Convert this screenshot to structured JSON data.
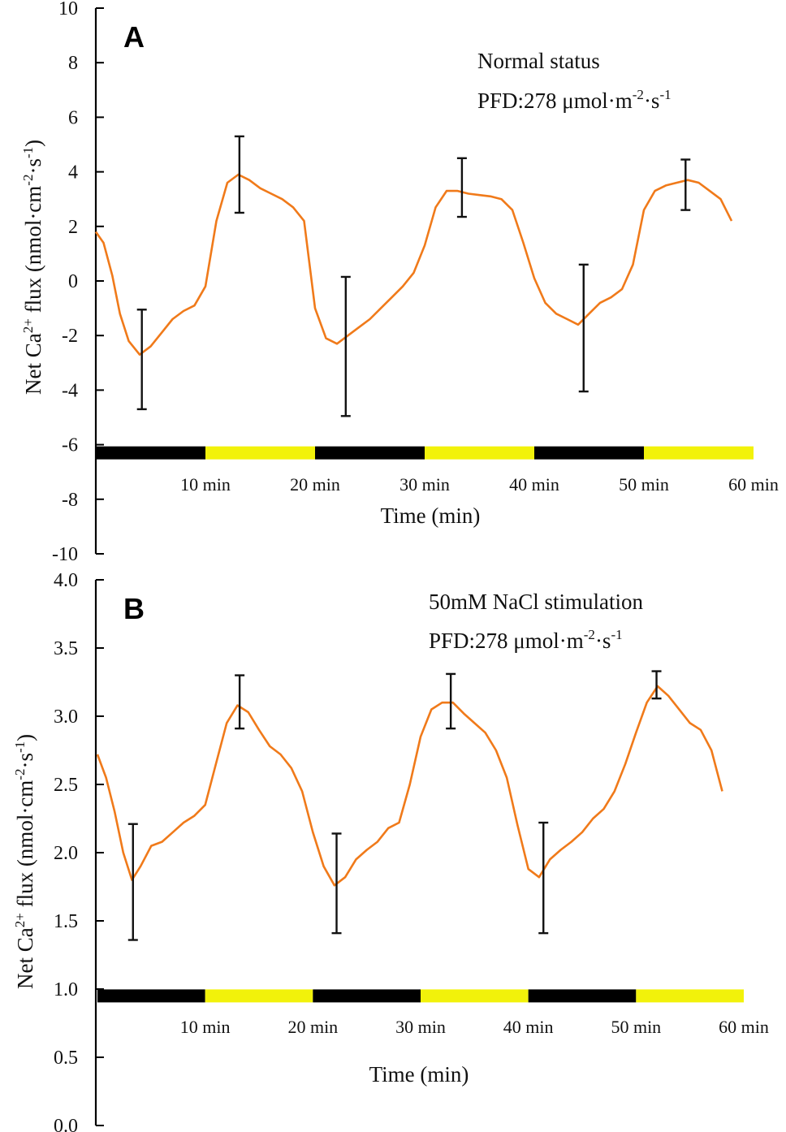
{
  "chart_data": [
    {
      "panel": "A",
      "type": "line",
      "ylabel": "Net Ca2+ flux (nmol·cm-2·s-1)",
      "ylabel_parts": {
        "pre": "Net Ca",
        "sup1": "2+",
        "mid": " flux (nmol·cm",
        "sup2": "-2",
        "mid2": "·s",
        "sup3": "-1",
        "post": ")"
      },
      "ylim": [
        -10,
        10
      ],
      "yticks": [
        "10",
        "8",
        "6",
        "4",
        "2",
        "0",
        "-2",
        "-4",
        "-6",
        "-8",
        "-10"
      ],
      "xlabel": "Time (min)",
      "xlim": [
        0,
        60
      ],
      "x_tick_labels": [
        "10 min",
        "20 min",
        "30 min",
        "40 min",
        "50 min",
        "60 min"
      ],
      "annotation_line1": "Normal status",
      "annotation_pfd": {
        "pre": "PFD:278 μmol·m",
        "sup1": "-2",
        "mid": "·s",
        "sup2": "-1"
      },
      "light_bar": {
        "y": -6.3,
        "segments": [
          {
            "from": 0,
            "to": 10,
            "state": "dark",
            "color": "#000000"
          },
          {
            "from": 10,
            "to": 20,
            "state": "light",
            "color": "#f2f20a"
          },
          {
            "from": 20,
            "to": 30,
            "state": "dark",
            "color": "#000000"
          },
          {
            "from": 30,
            "to": 40,
            "state": "light",
            "color": "#f2f20a"
          },
          {
            "from": 40,
            "to": 50,
            "state": "dark",
            "color": "#000000"
          },
          {
            "from": 50,
            "to": 60,
            "state": "light",
            "color": "#f2f20a"
          }
        ]
      },
      "series": [
        {
          "name": "Net Ca2+ flux",
          "color": "#f07a1a",
          "x": [
            0,
            0.7,
            1.5,
            2.2,
            3,
            4,
            5,
            6,
            7,
            8,
            9,
            10,
            11,
            12,
            13,
            14,
            15,
            16,
            17,
            18,
            19,
            20,
            21,
            22,
            23,
            24,
            25,
            26,
            27,
            28,
            29,
            30,
            31,
            32,
            33,
            34,
            35,
            36,
            37,
            38,
            39,
            40,
            41,
            42,
            43,
            44,
            45,
            46,
            47,
            48,
            49,
            50,
            51,
            52,
            53,
            54,
            55,
            56,
            57,
            58
          ],
          "y": [
            1.8,
            1.4,
            0.2,
            -1.2,
            -2.2,
            -2.7,
            -2.4,
            -1.9,
            -1.4,
            -1.1,
            -0.9,
            -0.2,
            2.2,
            3.6,
            3.9,
            3.7,
            3.4,
            3.2,
            3.0,
            2.7,
            2.2,
            -1.0,
            -2.1,
            -2.3,
            -2.0,
            -1.7,
            -1.4,
            -1.0,
            -0.6,
            -0.2,
            0.3,
            1.3,
            2.7,
            3.3,
            3.3,
            3.2,
            3.15,
            3.1,
            3.0,
            2.6,
            1.4,
            0.1,
            -0.8,
            -1.2,
            -1.4,
            -1.6,
            -1.2,
            -0.8,
            -0.6,
            -0.3,
            0.6,
            2.6,
            3.3,
            3.5,
            3.6,
            3.7,
            3.6,
            3.3,
            3.0,
            2.2
          ]
        }
      ],
      "error_bars": [
        {
          "x": 4.2,
          "center": -2.8,
          "low": -4.7,
          "high": -1.05
        },
        {
          "x": 13.1,
          "center": 3.9,
          "low": 2.5,
          "high": 5.3
        },
        {
          "x": 22.8,
          "center": -2.4,
          "low": -4.95,
          "high": 0.15
        },
        {
          "x": 33.4,
          "center": 3.4,
          "low": 2.35,
          "high": 4.5
        },
        {
          "x": 44.5,
          "center": -1.7,
          "low": -4.05,
          "high": 0.6
        },
        {
          "x": 53.8,
          "center": 3.5,
          "low": 2.6,
          "high": 4.45
        }
      ]
    },
    {
      "panel": "B",
      "type": "line",
      "ylabel": "Net Ca2+ flux (nmol·cm-2·s-1)",
      "ylabel_parts": {
        "pre": "Net Ca",
        "sup1": "2+",
        "mid": " flux (nmol·cm",
        "sup2": "-2",
        "mid2": "·s",
        "sup3": "-1",
        "post": ")"
      },
      "ylim": [
        0.0,
        4.0
      ],
      "yticks": [
        "4.0",
        "3.5",
        "3.0",
        "2.5",
        "2.0",
        "1.5",
        "1.0",
        "0.5",
        "0.0"
      ],
      "xlabel": "Time (min)",
      "xlim": [
        0,
        60
      ],
      "x_tick_labels": [
        "10 min",
        "20 min",
        "30 min",
        "40 min",
        "50 min",
        "60 min"
      ],
      "annotation_line1": "50mM NaCl stimulation",
      "annotation_pfd": {
        "pre": "PFD:278 μmol·m",
        "sup1": "-2",
        "mid": "·s",
        "sup2": "-1"
      },
      "light_bar": {
        "y": 0.95,
        "segments": [
          {
            "from": 0,
            "to": 10,
            "state": "dark",
            "color": "#000000"
          },
          {
            "from": 10,
            "to": 20,
            "state": "light",
            "color": "#f2f20a"
          },
          {
            "from": 20,
            "to": 30,
            "state": "dark",
            "color": "#000000"
          },
          {
            "from": 30,
            "to": 40,
            "state": "light",
            "color": "#f2f20a"
          },
          {
            "from": 40,
            "to": 50,
            "state": "dark",
            "color": "#000000"
          },
          {
            "from": 50,
            "to": 60,
            "state": "light",
            "color": "#f2f20a"
          }
        ]
      },
      "series": [
        {
          "name": "Net Ca2+ flux",
          "color": "#f07a1a",
          "x": [
            0,
            0.8,
            1.6,
            2.4,
            3.2,
            4,
            5,
            6,
            7,
            8,
            9,
            10,
            11,
            12,
            13,
            14,
            15,
            16,
            17,
            18,
            19,
            20,
            21,
            22,
            23,
            24,
            25,
            26,
            27,
            28,
            29,
            30,
            31,
            32,
            33,
            34,
            35,
            36,
            37,
            38,
            39,
            40,
            41,
            42,
            43,
            44,
            45,
            46,
            47,
            48,
            49,
            50,
            51,
            52,
            53,
            54,
            55,
            56,
            57,
            58
          ],
          "y": [
            2.72,
            2.55,
            2.3,
            2.0,
            1.8,
            1.9,
            2.05,
            2.08,
            2.15,
            2.22,
            2.27,
            2.35,
            2.65,
            2.95,
            3.08,
            3.03,
            2.9,
            2.78,
            2.72,
            2.62,
            2.45,
            2.15,
            1.9,
            1.76,
            1.82,
            1.95,
            2.02,
            2.08,
            2.18,
            2.22,
            2.5,
            2.85,
            3.05,
            3.1,
            3.1,
            3.02,
            2.95,
            2.88,
            2.75,
            2.55,
            2.2,
            1.88,
            1.82,
            1.95,
            2.02,
            2.08,
            2.15,
            2.25,
            2.32,
            2.45,
            2.65,
            2.88,
            3.1,
            3.22,
            3.15,
            3.05,
            2.95,
            2.9,
            2.75,
            2.45
          ]
        }
      ],
      "error_bars": [
        {
          "x": 3.3,
          "center": 1.8,
          "low": 1.36,
          "high": 2.21
        },
        {
          "x": 13.2,
          "center": 3.1,
          "low": 2.91,
          "high": 3.3
        },
        {
          "x": 22.2,
          "center": 1.77,
          "low": 1.41,
          "high": 2.14
        },
        {
          "x": 32.8,
          "center": 3.1,
          "low": 2.91,
          "high": 3.31
        },
        {
          "x": 41.4,
          "center": 1.82,
          "low": 1.41,
          "high": 2.22
        },
        {
          "x": 51.9,
          "center": 3.24,
          "low": 3.13,
          "high": 3.33
        }
      ]
    }
  ]
}
